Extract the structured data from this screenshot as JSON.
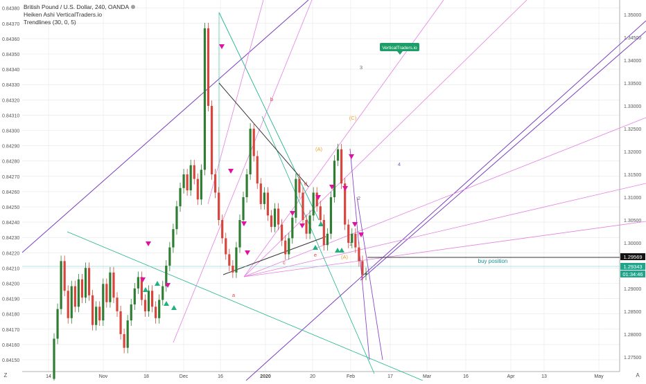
{
  "legend": {
    "line1": "British Pound / U.S. Dollar, 240, OANDA",
    "line2": "Heiken Ashi VerticalTraders.io",
    "line3": "Trendlines (30, 0, 5)"
  },
  "watermark": "VerticalTraders.io",
  "buy_position_label": "buy position",
  "price_tags": {
    "level": "1.29569",
    "current": "1.29343",
    "countdown": "01:34:46"
  },
  "buttons": {
    "zoom_left": "Z",
    "scale_right": "A"
  },
  "colors": {
    "candle_up": "#2e7d32",
    "candle_down": "#d7463d",
    "grid": "#e6e6e6",
    "trendline_purple": "#7b3fbf",
    "fan_pink": "#e47fe2",
    "teal": "#1fb58f",
    "black": "#333333",
    "buy_marker": "#22b07d",
    "sell_marker": "#e0119f",
    "watermark_bg": "#1d9e68"
  },
  "chart_data": {
    "type": "candlestick",
    "heikin_ashi": true,
    "left_axis": {
      "ticks": [
        "0.84150",
        "0.84160",
        "0.84170",
        "0.84180",
        "0.84190",
        "0.84200",
        "0.84210",
        "0.84220",
        "0.84230",
        "0.84240",
        "0.84250",
        "0.84260",
        "0.84270",
        "0.84280",
        "0.84290",
        "0.84300",
        "0.84310",
        "0.84320",
        "0.84330",
        "0.84340",
        "0.84350",
        "0.84360",
        "0.84370",
        "0.84380"
      ]
    },
    "right_axis": {
      "ticks": [
        "1.27500",
        "1.28000",
        "1.28500",
        "1.29000",
        "1.29500",
        "1.30000",
        "1.30500",
        "1.31000",
        "1.31500",
        "1.32000",
        "1.32500",
        "1.33000",
        "1.33500",
        "1.34000",
        "1.34500",
        "1.35000"
      ],
      "range": [
        1.2718,
        1.3532
      ]
    },
    "x_ticks": [
      {
        "label": "14",
        "bold": false
      },
      {
        "label": "Nov",
        "bold": false
      },
      {
        "label": "18",
        "bold": false
      },
      {
        "label": "Dec",
        "bold": false
      },
      {
        "label": "16",
        "bold": false
      },
      {
        "label": "2020",
        "bold": true
      },
      {
        "label": "20",
        "bold": false
      },
      {
        "label": "Feb",
        "bold": false
      },
      {
        "label": "17",
        "bold": false
      },
      {
        "label": "Mar",
        "bold": false
      },
      {
        "label": "16",
        "bold": false
      },
      {
        "label": "Apr",
        "bold": false
      },
      {
        "label": "13",
        "bold": false
      },
      {
        "label": "May",
        "bold": false
      }
    ],
    "candles": [
      [
        1.2702,
        1.279
      ],
      [
        1.279,
        1.2855
      ],
      [
        1.2855,
        1.296
      ],
      [
        1.296,
        1.2895
      ],
      [
        1.2895,
        1.2835
      ],
      [
        1.2835,
        1.2905
      ],
      [
        1.2905,
        1.286
      ],
      [
        1.286,
        1.292
      ],
      [
        1.292,
        1.288
      ],
      [
        1.288,
        1.2945
      ],
      [
        1.2945,
        1.2885
      ],
      [
        1.2885,
        1.282
      ],
      [
        1.282,
        1.286
      ],
      [
        1.286,
        1.283
      ],
      [
        1.283,
        1.291
      ],
      [
        1.291,
        1.287
      ],
      [
        1.287,
        1.2935
      ],
      [
        1.2935,
        1.288
      ],
      [
        1.288,
        1.285
      ],
      [
        1.285,
        1.28
      ],
      [
        1.28,
        1.277
      ],
      [
        1.277,
        1.283
      ],
      [
        1.283,
        1.2865
      ],
      [
        1.2865,
        1.29
      ],
      [
        1.29,
        1.2925
      ],
      [
        1.2925,
        1.2875
      ],
      [
        1.2875,
        1.285
      ],
      [
        1.285,
        1.2895
      ],
      [
        1.2895,
        1.286
      ],
      [
        1.286,
        1.2835
      ],
      [
        1.2835,
        1.2875
      ],
      [
        1.2875,
        1.2905
      ],
      [
        1.2905,
        1.295
      ],
      [
        1.295,
        1.299
      ],
      [
        1.299,
        1.303
      ],
      [
        1.303,
        1.308
      ],
      [
        1.308,
        1.312
      ],
      [
        1.312,
        1.315
      ],
      [
        1.315,
        1.3115
      ],
      [
        1.3115,
        1.317
      ],
      [
        1.317,
        1.314
      ],
      [
        1.314,
        1.3095
      ],
      [
        1.3095,
        1.316
      ],
      [
        1.316,
        1.347
      ],
      [
        1.347,
        1.33
      ],
      [
        1.33,
        1.315
      ],
      [
        1.315,
        1.311
      ],
      [
        1.311,
        1.305
      ],
      [
        1.305,
        1.301
      ],
      [
        1.301,
        1.2975
      ],
      [
        1.2975,
        1.295
      ],
      [
        1.295,
        1.2935
      ],
      [
        1.2935,
        1.299
      ],
      [
        1.299,
        1.305
      ],
      [
        1.305,
        1.31
      ],
      [
        1.31,
        1.315
      ],
      [
        1.315,
        1.325
      ],
      [
        1.325,
        1.319
      ],
      [
        1.319,
        1.313
      ],
      [
        1.313,
        1.3085
      ],
      [
        1.3085,
        1.311
      ],
      [
        1.311,
        1.306
      ],
      [
        1.306,
        1.3035
      ],
      [
        1.3035,
        1.3075
      ],
      [
        1.3075,
        1.304
      ],
      [
        1.304,
        1.3005
      ],
      [
        1.3005,
        1.2975
      ],
      [
        1.2975,
        1.301
      ],
      [
        1.301,
        1.3055
      ],
      [
        1.3055,
        1.314
      ],
      [
        1.314,
        1.311
      ],
      [
        1.311,
        1.305
      ],
      [
        1.305,
        1.302
      ],
      [
        1.302,
        1.306
      ],
      [
        1.306,
        1.311
      ],
      [
        1.311,
        1.308
      ],
      [
        1.308,
        1.305
      ],
      [
        1.305,
        1.2995
      ],
      [
        1.2995,
        1.302
      ],
      [
        1.302,
        1.31
      ],
      [
        1.31,
        1.318
      ],
      [
        1.318,
        1.3205
      ],
      [
        1.3205,
        1.313
      ],
      [
        1.313,
        1.304
      ],
      [
        1.304,
        1.3
      ],
      [
        1.3,
        1.302
      ],
      [
        1.302,
        1.299
      ],
      [
        1.299,
        1.296
      ],
      [
        1.296,
        1.293
      ],
      [
        1.293,
        1.2934
      ]
    ],
    "trendlines": [
      {
        "color": "trendline_purple",
        "from": [
          0,
          1.263
        ],
        "to": [
          1,
          1.37
        ]
      }
    ],
    "annotations": [
      {
        "text": "a",
        "color": "#d7463d"
      },
      {
        "text": "b",
        "color": "#d7463d"
      },
      {
        "text": "c",
        "color": "#d7463d"
      },
      {
        "text": "d",
        "color": "#d7463d"
      },
      {
        "text": "e",
        "color": "#d7463d"
      },
      {
        "text": "(A)",
        "color": "#f0a030"
      },
      {
        "text": "(C)",
        "color": "#f0a030"
      },
      {
        "text": "(A)",
        "color": "#f0a030"
      },
      {
        "text": "3",
        "color": "#666666"
      },
      {
        "text": "4",
        "color": "#7b5fbf"
      },
      {
        "text": "2",
        "color": "#666666"
      },
      {
        "text": "1",
        "color": "#666666"
      }
    ]
  }
}
